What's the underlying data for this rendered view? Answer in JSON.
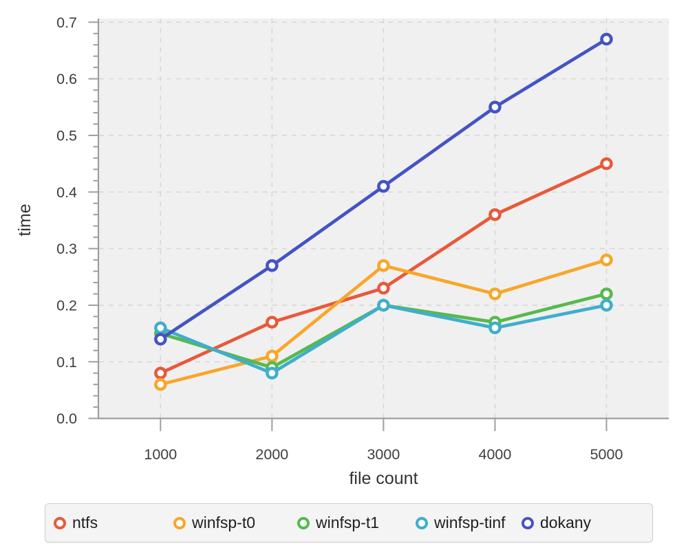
{
  "chart_data": {
    "type": "line",
    "x": [
      1000,
      2000,
      3000,
      4000,
      5000
    ],
    "xtick_labels": [
      "1000",
      "2000",
      "3000",
      "4000",
      "5000"
    ],
    "ytick_labels": [
      "0.0",
      "0.1",
      "0.2",
      "0.3",
      "0.4",
      "0.5",
      "0.6",
      "0.7"
    ],
    "xlabel": "file count",
    "ylabel": "time",
    "ylim": [
      0,
      0.7
    ],
    "xlim": [
      443,
      5557
    ],
    "grid": true,
    "grid_style": "dashed",
    "plot_background": "#f0f0f0",
    "marker": "open-circle",
    "legend_position": "bottom",
    "series": [
      {
        "name": "ntfs",
        "color": "#E8593A",
        "values": [
          0.08,
          0.17,
          0.23,
          0.36,
          0.45
        ]
      },
      {
        "name": "winfsp-t0",
        "color": "#F9A62A",
        "values": [
          0.06,
          0.11,
          0.27,
          0.22,
          0.28
        ]
      },
      {
        "name": "winfsp-t1",
        "color": "#57B94E",
        "values": [
          0.15,
          0.09,
          0.2,
          0.17,
          0.22
        ]
      },
      {
        "name": "winfsp-tinf",
        "color": "#3FAECC",
        "values": [
          0.16,
          0.08,
          0.2,
          0.16,
          0.2
        ]
      },
      {
        "name": "dokany",
        "color": "#4454C4",
        "values": [
          0.14,
          0.27,
          0.41,
          0.55,
          0.67
        ]
      }
    ]
  }
}
